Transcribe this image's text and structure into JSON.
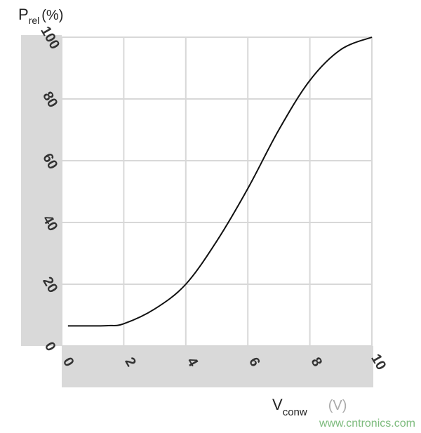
{
  "chart_data": {
    "type": "line",
    "title": "",
    "ylabel": {
      "main": "P",
      "sub": "rel",
      "unit": "(%)"
    },
    "xlabel": {
      "main": "V",
      "sub": "conw",
      "unit": "(V)"
    },
    "xlim": [
      0,
      10
    ],
    "ylim": [
      0,
      100
    ],
    "xticks": [
      "0",
      "2",
      "4",
      "6",
      "8",
      "10"
    ],
    "yticks": [
      "0",
      "20",
      "40",
      "60",
      "80",
      "100"
    ],
    "grid": true,
    "colors": {
      "line": "#111111",
      "grid": "#d8d8d8",
      "band": "#d9d9d9",
      "watermark": "#7dbb7d"
    },
    "series": [
      {
        "x": [
          0.2,
          1,
          1.5,
          2,
          3,
          4,
          5,
          6,
          7,
          8,
          9,
          10
        ],
        "y": [
          6.5,
          6.5,
          6.6,
          7.2,
          12,
          20,
          34,
          51,
          70,
          86,
          96,
          100
        ]
      }
    ]
  },
  "watermark": "www.cntronics.com"
}
